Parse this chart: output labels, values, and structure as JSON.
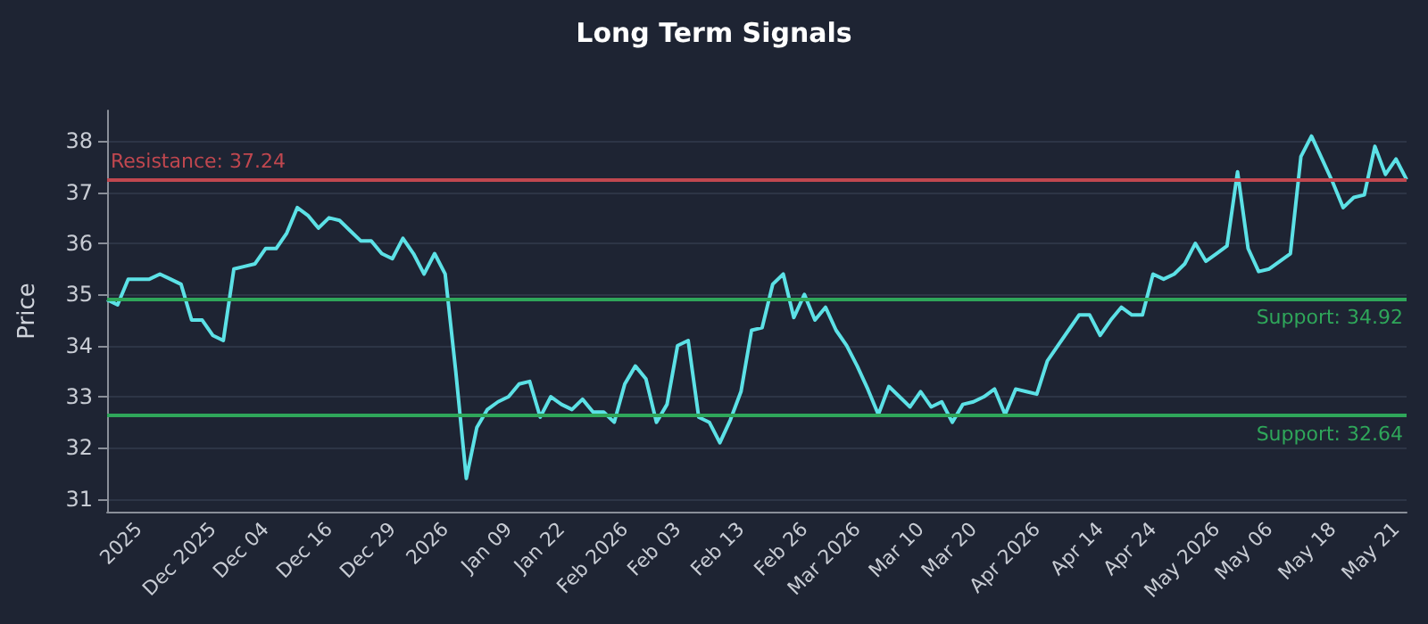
{
  "chart_data": {
    "type": "line",
    "title": "Long Term Signals",
    "ylabel": "Price",
    "categories": [
      null,
      null,
      null,
      "2025",
      null,
      null,
      null,
      null,
      null,
      null,
      "Dec 2025",
      null,
      null,
      null,
      null,
      "Dec 04",
      null,
      null,
      null,
      null,
      null,
      "Dec 16",
      null,
      null,
      null,
      null,
      null,
      "Dec 29",
      null,
      null,
      null,
      null,
      "2026",
      null,
      null,
      null,
      null,
      null,
      "Jan 09",
      null,
      null,
      null,
      null,
      "Jan 22",
      null,
      null,
      null,
      null,
      null,
      "Feb 2026",
      null,
      null,
      null,
      null,
      "Feb 03",
      null,
      null,
      null,
      null,
      null,
      "Feb 13",
      null,
      null,
      null,
      null,
      null,
      "Feb 26",
      null,
      null,
      null,
      null,
      "Mar 2026",
      null,
      null,
      null,
      null,
      null,
      "Mar 10",
      null,
      null,
      null,
      null,
      "Mar 20",
      null,
      null,
      null,
      null,
      null,
      "Apr 2026",
      null,
      null,
      null,
      null,
      null,
      "Apr 14",
      null,
      null,
      null,
      null,
      "Apr 24",
      null,
      null,
      null,
      null,
      null,
      "May 2026",
      null,
      null,
      null,
      null,
      "May 06",
      null,
      null,
      null,
      null,
      null,
      "May 18",
      null,
      null,
      null,
      null,
      null,
      "May 21",
      null
    ],
    "series": [
      {
        "color": "#5ce1e6",
        "values": [
          34.9,
          34.8,
          35.3,
          35.3,
          35.3,
          35.4,
          35.3,
          35.2,
          34.5,
          34.5,
          34.2,
          34.1,
          35.5,
          35.55,
          35.6,
          35.9,
          35.9,
          36.2,
          36.7,
          36.55,
          36.3,
          36.5,
          36.45,
          36.25,
          36.05,
          36.05,
          35.8,
          35.7,
          36.1,
          35.8,
          35.4,
          35.8,
          35.4,
          33.5,
          31.4,
          32.4,
          32.75,
          32.9,
          33.0,
          33.25,
          33.3,
          32.6,
          33.0,
          32.85,
          32.75,
          32.95,
          32.7,
          32.7,
          32.5,
          33.25,
          33.6,
          33.35,
          32.5,
          32.85,
          34.0,
          34.1,
          32.6,
          32.5,
          32.1,
          32.55,
          33.1,
          34.3,
          34.35,
          35.2,
          35.4,
          34.55,
          35.0,
          34.5,
          34.75,
          34.3,
          34.0,
          33.6,
          33.15,
          32.65,
          33.2,
          33.0,
          32.8,
          33.1,
          32.8,
          32.9,
          32.5,
          32.85,
          32.9,
          33.0,
          33.15,
          32.65,
          33.15,
          33.1,
          33.05,
          33.7,
          34.0,
          34.3,
          34.6,
          34.6,
          34.2,
          34.5,
          34.75,
          34.6,
          34.6,
          35.4,
          35.3,
          35.4,
          35.6,
          36.0,
          35.65,
          35.8,
          35.95,
          37.4,
          35.9,
          35.45,
          35.5,
          35.65,
          35.8,
          37.7,
          38.1,
          37.65,
          37.2,
          36.7,
          36.9,
          36.95,
          37.9,
          37.35,
          37.65,
          37.25
        ]
      }
    ],
    "ylim": [
      30.75,
      38.6
    ],
    "yticks": [
      31,
      32,
      33,
      34,
      35,
      36,
      37,
      38
    ],
    "grid": "y",
    "marker": "none",
    "line_style": "solid",
    "ref_lines": [
      {
        "axis": "y",
        "value": 37.24,
        "label": "Resistance: 37.24",
        "color": "#c0474f"
      },
      {
        "axis": "y",
        "value": 34.92,
        "label": "Support: 34.92",
        "color": "#2fa65a"
      },
      {
        "axis": "y",
        "value": 32.64,
        "label": "Support: 32.64",
        "color": "#2fa65a"
      }
    ]
  }
}
